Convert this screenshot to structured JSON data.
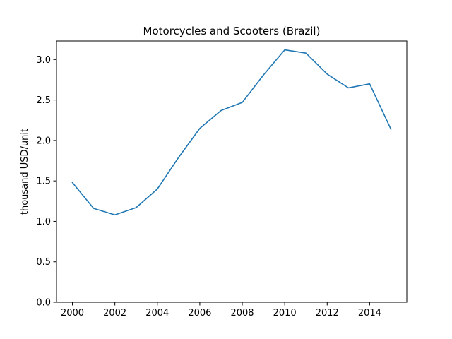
{
  "chart_data": {
    "type": "line",
    "title": "Motorcycles and Scooters (Brazil)",
    "xlabel": "",
    "ylabel": "thousand USD/unit",
    "x": [
      2000,
      2001,
      2002,
      2003,
      2004,
      2005,
      2006,
      2007,
      2008,
      2009,
      2010,
      2011,
      2012,
      2013,
      2014,
      2015
    ],
    "series": [
      {
        "values": [
          1.48,
          1.16,
          1.08,
          1.17,
          1.4,
          1.79,
          2.15,
          2.37,
          2.47,
          2.81,
          3.12,
          3.08,
          2.82,
          2.65,
          2.7,
          2.14
        ]
      }
    ],
    "xlim": [
      1999.25,
      2015.75
    ],
    "ylim": [
      0,
      3.23
    ],
    "xticks": [
      "2000",
      "2002",
      "2004",
      "2006",
      "2008",
      "2010",
      "2012",
      "2014"
    ],
    "yticks": [
      "0.0",
      "0.5",
      "1.0",
      "1.5",
      "2.0",
      "2.5",
      "3.0"
    ],
    "grid": false,
    "colors": {
      "line": "#1f77b4",
      "axes": "#000000"
    }
  }
}
